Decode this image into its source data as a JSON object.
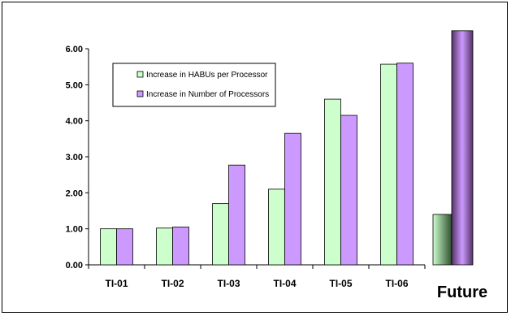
{
  "chart_data": {
    "type": "bar",
    "categories": [
      "TI-01",
      "TI-02",
      "TI-03",
      "TI-04",
      "TI-05",
      "TI-06"
    ],
    "series": [
      {
        "name": "Increase in HABUs per Processor",
        "color": "#ccffcc",
        "values": [
          1.0,
          1.02,
          1.7,
          2.1,
          4.6,
          5.57
        ]
      },
      {
        "name": "Increase in Number of Processors",
        "color": "#cc99ff",
        "values": [
          1.0,
          1.05,
          2.77,
          3.65,
          4.15,
          5.6
        ]
      }
    ],
    "y_ticks": [
      "0.00",
      "1.00",
      "2.00",
      "3.00",
      "4.00",
      "5.00",
      "6.00"
    ],
    "ylim": [
      0,
      6
    ],
    "grid": false,
    "legend_position": "top-left",
    "future": {
      "label": "Future",
      "habus_value": 1.4,
      "processors_value": 6.5,
      "habus_gradient": [
        "#ccffcc",
        "#2f4f2f"
      ],
      "processors_gradient": [
        "#553366",
        "#cc99ff",
        "#553366"
      ]
    }
  }
}
